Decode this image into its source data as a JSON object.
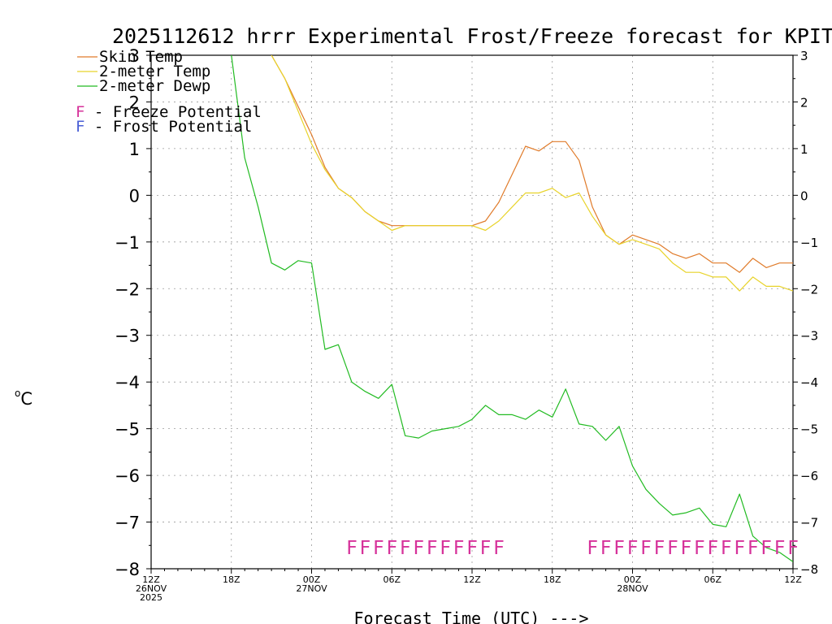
{
  "chart_data": {
    "type": "line",
    "title": "2025112612 hrrr Experimental Frost/Freeze forecast for KPIT",
    "xlabel": "Forecast Time (UTC) --->",
    "ylabel": "°C",
    "ylabel_prefix": "o",
    "ylabel_unit": "C",
    "ylim": [
      -8,
      3
    ],
    "xlim": [
      0,
      48
    ],
    "yticks": [
      -8,
      -7,
      -6,
      -5,
      -4,
      -3,
      -2,
      -1,
      0,
      1,
      2,
      3
    ],
    "ytick_labels": [
      "−8",
      "−7",
      "−6",
      "−5",
      "−4",
      "−3",
      "−2",
      "−1",
      "0",
      "1",
      "2",
      "3"
    ],
    "xticks": [
      {
        "x": 0,
        "lines": [
          "12Z",
          "26NOV",
          "2025"
        ]
      },
      {
        "x": 6,
        "lines": [
          "18Z"
        ]
      },
      {
        "x": 12,
        "lines": [
          "00Z",
          "27NOV"
        ]
      },
      {
        "x": 18,
        "lines": [
          "06Z"
        ]
      },
      {
        "x": 24,
        "lines": [
          "12Z"
        ]
      },
      {
        "x": 30,
        "lines": [
          "18Z"
        ]
      },
      {
        "x": 36,
        "lines": [
          "00Z",
          "28NOV"
        ]
      },
      {
        "x": 42,
        "lines": [
          "06Z"
        ]
      },
      {
        "x": 48,
        "lines": [
          "12Z"
        ]
      }
    ],
    "grid": true,
    "legend": {
      "placement": "top-left",
      "series_entries": [
        "Skin Temp",
        "2-meter Temp",
        "2-meter Dewp"
      ],
      "freeze_entry": {
        "symbol": "F",
        "text": " - Freeze Potential",
        "color": "#d6329a"
      },
      "frost_entry": {
        "symbol": "F",
        "text": " - Frost Potential",
        "color": "#4a5fd6"
      }
    },
    "series": [
      {
        "name": "Skin Temp",
        "color": "#e07b2a",
        "x": [
          9,
          10,
          11,
          12,
          13,
          14,
          15,
          16,
          17,
          18,
          19,
          20,
          21,
          22,
          23,
          24,
          25,
          26,
          27,
          28,
          29,
          30,
          31,
          32,
          33,
          34,
          35,
          36,
          37,
          38,
          39,
          40,
          41,
          42,
          43,
          44,
          45,
          46,
          47,
          48
        ],
        "values": [
          3,
          2.5,
          1.9,
          1.3,
          0.6,
          0.15,
          -0.05,
          -0.35,
          -0.55,
          -0.65,
          -0.65,
          -0.65,
          -0.65,
          -0.65,
          -0.65,
          -0.65,
          -0.55,
          -0.15,
          0.45,
          1.05,
          0.95,
          1.15,
          1.15,
          0.75,
          -0.25,
          -0.85,
          -1.05,
          -0.85,
          -0.95,
          -1.05,
          -1.25,
          -1.35,
          -1.25,
          -1.45,
          -1.45,
          -1.65,
          -1.35,
          -1.55,
          -1.45,
          -1.45
        ]
      },
      {
        "name": "2-meter Temp",
        "color": "#e8d32a",
        "x": [
          9,
          10,
          11,
          12,
          13,
          14,
          15,
          16,
          17,
          18,
          19,
          20,
          21,
          22,
          23,
          24,
          25,
          26,
          27,
          28,
          29,
          30,
          31,
          32,
          33,
          34,
          35,
          36,
          37,
          38,
          39,
          40,
          41,
          42,
          43,
          44,
          45,
          46,
          47,
          48
        ],
        "values": [
          3,
          2.5,
          1.8,
          1.1,
          0.55,
          0.15,
          -0.05,
          -0.35,
          -0.55,
          -0.75,
          -0.65,
          -0.65,
          -0.65,
          -0.65,
          -0.65,
          -0.65,
          -0.75,
          -0.55,
          -0.25,
          0.05,
          0.05,
          0.15,
          -0.05,
          0.05,
          -0.45,
          -0.85,
          -1.05,
          -0.95,
          -1.05,
          -1.15,
          -1.45,
          -1.65,
          -1.65,
          -1.75,
          -1.75,
          -2.05,
          -1.75,
          -1.95,
          -1.95,
          -2.05
        ]
      },
      {
        "name": "2-meter Dewp",
        "color": "#22bb22",
        "x": [
          6,
          7,
          8,
          9,
          10,
          11,
          12,
          13,
          14,
          15,
          16,
          17,
          18,
          19,
          20,
          21,
          22,
          23,
          24,
          25,
          26,
          27,
          28,
          29,
          30,
          31,
          32,
          33,
          34,
          35,
          36,
          37,
          38,
          39,
          40,
          41,
          42,
          43,
          44,
          45,
          46,
          47,
          48
        ],
        "values": [
          3,
          0.8,
          -0.25,
          -1.45,
          -1.6,
          -1.4,
          -1.45,
          -3.3,
          -3.2,
          -4.0,
          -4.2,
          -4.35,
          -4.05,
          -5.15,
          -5.2,
          -5.05,
          -5.0,
          -4.95,
          -4.8,
          -4.5,
          -4.7,
          -4.7,
          -4.8,
          -4.6,
          -4.75,
          -4.15,
          -4.9,
          -4.95,
          -5.25,
          -4.95,
          -5.8,
          -6.3,
          -6.6,
          -6.85,
          -6.8,
          -6.7,
          -7.05,
          -7.1,
          -6.4,
          -7.3,
          -7.55,
          -7.65,
          -7.85
        ]
      }
    ],
    "freeze_marks": {
      "symbol": "F",
      "y": -7.55,
      "x": [
        15,
        16,
        17,
        18,
        19,
        20,
        21,
        22,
        23,
        24,
        25,
        26,
        33,
        34,
        35,
        36,
        37,
        38,
        39,
        40,
        41,
        42,
        43,
        44,
        45,
        46,
        47,
        48
      ]
    },
    "text_runs": {
      "freeze_run_1": "FFFFFFFFFFFF",
      "freeze_run_2": "FFFFFFFFFFFFFFFF"
    }
  }
}
